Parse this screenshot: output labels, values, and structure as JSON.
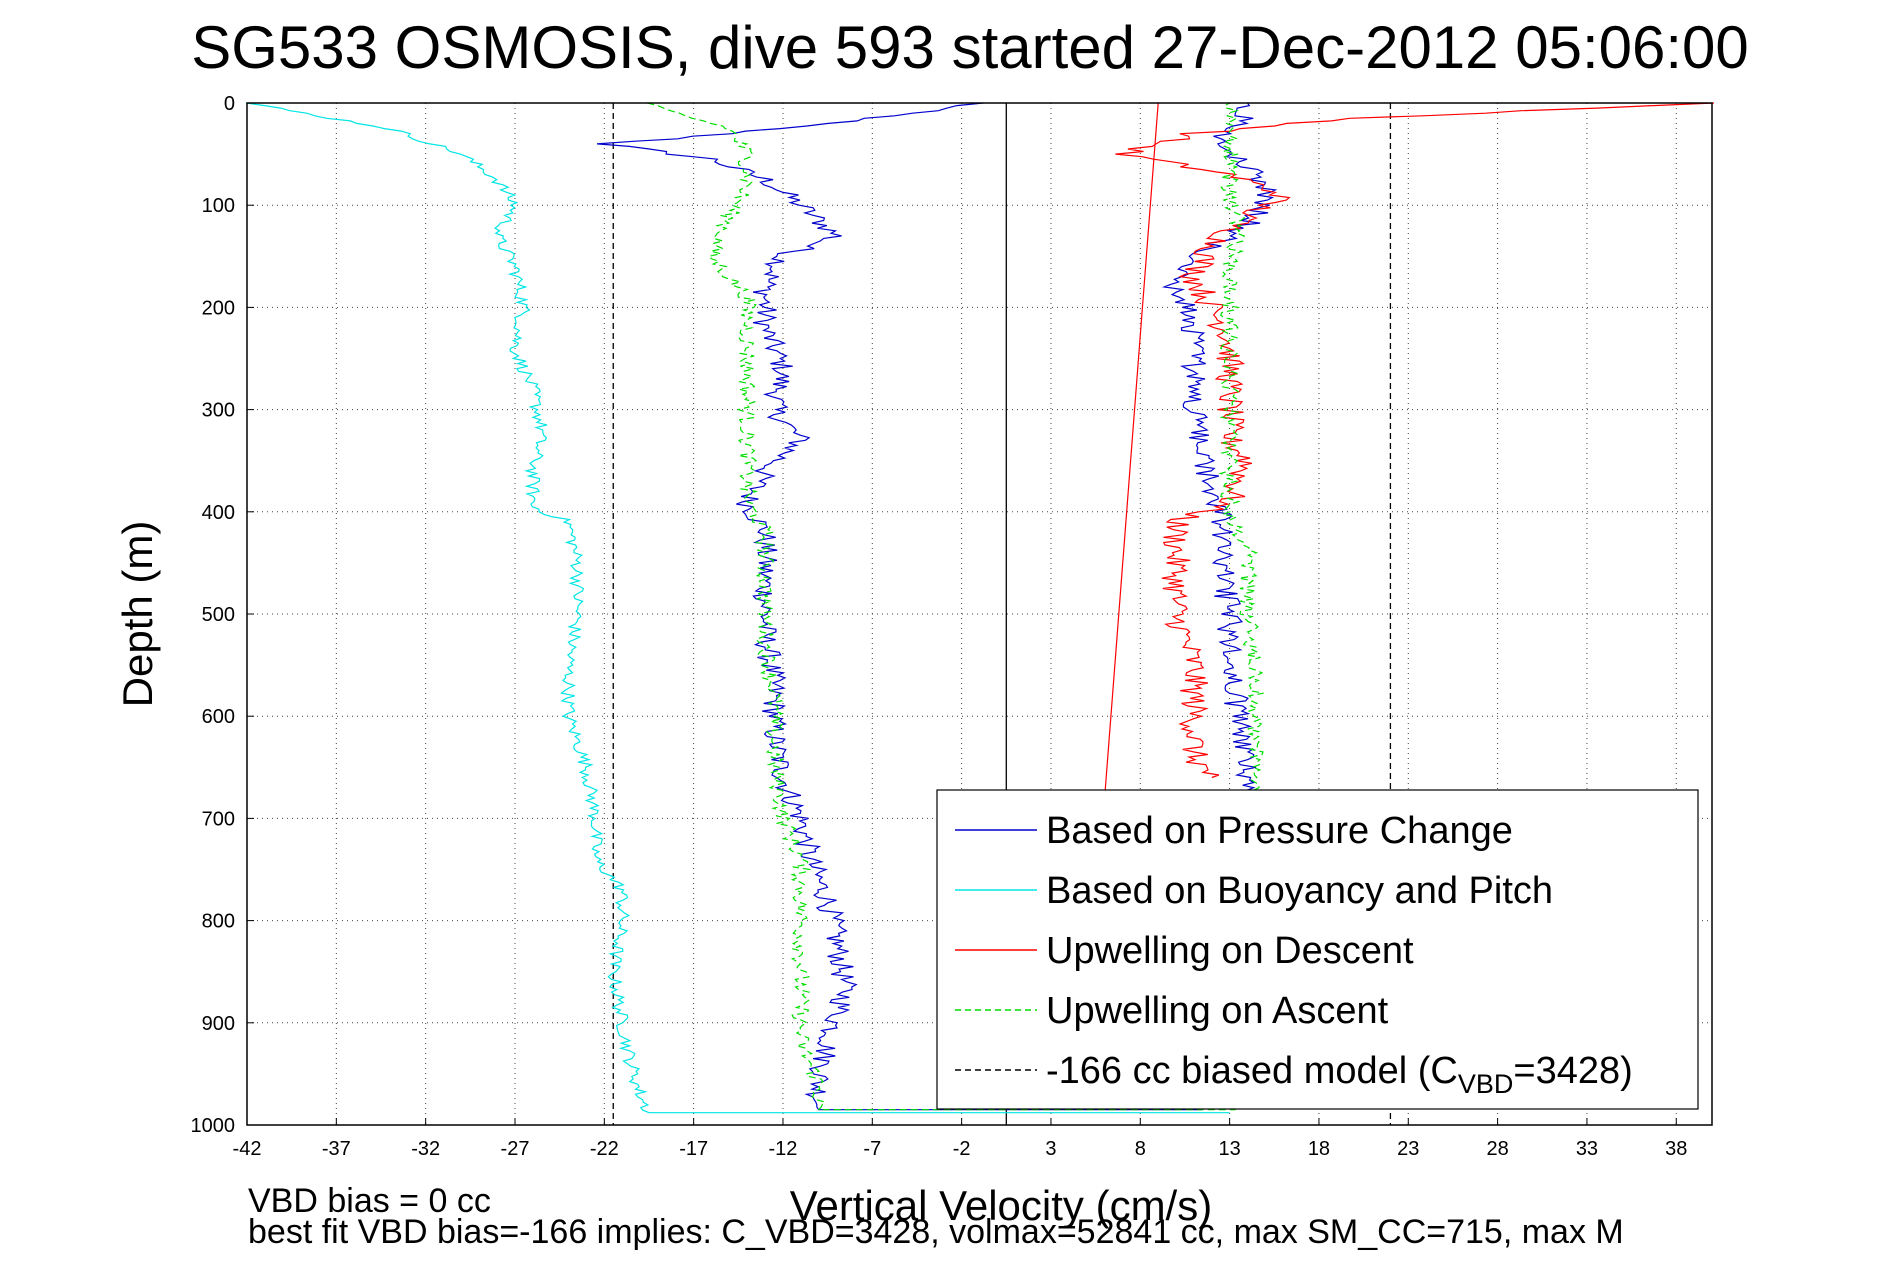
{
  "chart_data": {
    "type": "line",
    "title": "SG533 OSMOSIS, dive 593 started 27-Dec-2012 05:06:00",
    "xlabel": "Vertical Velocity (cm/s)",
    "ylabel": "Depth (m)",
    "xlim": [
      -42,
      40
    ],
    "ylim": [
      1000,
      0
    ],
    "y_reversed": true,
    "grid": true,
    "legend_position": "bottom-right",
    "x_ticks": [
      "-42",
      "-37",
      "-32",
      "-27",
      "-22",
      "-17",
      "-12",
      "-7",
      "-2",
      "3",
      "8",
      "13",
      "18",
      "23",
      "28",
      "33",
      "38"
    ],
    "y_ticks": [
      "0",
      "100",
      "200",
      "300",
      "400",
      "500",
      "600",
      "700",
      "800",
      "900",
      "1000"
    ],
    "legend": [
      {
        "label": "Based on Pressure Change",
        "color": "#0000cc",
        "dash": "solid"
      },
      {
        "label": "Based on Buoyancy and Pitch",
        "color": "#00e5e5",
        "dash": "solid"
      },
      {
        "label": "Upwelling on Descent",
        "color": "#ff0000",
        "dash": "solid"
      },
      {
        "label": "Upwelling on Ascent",
        "color": "#00dd00",
        "dash": "dashed"
      },
      {
        "label_prefix": "-166 cc biased model (C",
        "label_sub": "VBD",
        "label_suffix": "=3428)",
        "color": "#000000",
        "dash": "dashed"
      }
    ],
    "series": [
      {
        "name": "Based on Pressure Change",
        "color": "#0000cc",
        "points": [
          [
            -1,
            0
          ],
          [
            -7,
            15
          ],
          [
            -18,
            35
          ],
          [
            -22,
            40
          ],
          [
            -16,
            55
          ],
          [
            -13,
            75
          ],
          [
            -11,
            100
          ],
          [
            -9,
            130
          ],
          [
            -12,
            150
          ],
          [
            -13,
            180
          ],
          [
            -13,
            220
          ],
          [
            -12,
            260
          ],
          [
            -12.5,
            300
          ],
          [
            -11,
            330
          ],
          [
            -13,
            360
          ],
          [
            -14,
            390
          ],
          [
            -13,
            420
          ],
          [
            -13,
            470
          ],
          [
            -13,
            520
          ],
          [
            -12.5,
            570
          ],
          [
            -12.5,
            620
          ],
          [
            -12,
            660
          ],
          [
            -11,
            700
          ],
          [
            -10.5,
            740
          ],
          [
            -9.5,
            780
          ],
          [
            -9,
            820
          ],
          [
            -8.5,
            870
          ],
          [
            -9.5,
            920
          ],
          [
            -10,
            960
          ],
          [
            -10,
            985
          ],
          [
            12,
            985
          ],
          [
            12,
            960
          ],
          [
            13,
            920
          ],
          [
            14,
            880
          ],
          [
            14,
            800
          ],
          [
            14.5,
            700
          ],
          [
            14,
            650
          ],
          [
            13.5,
            600
          ],
          [
            13,
            550
          ],
          [
            13,
            500
          ],
          [
            12.5,
            450
          ],
          [
            12.5,
            400
          ],
          [
            11.5,
            350
          ],
          [
            11,
            300
          ],
          [
            11,
            250
          ],
          [
            11,
            210
          ],
          [
            10,
            180
          ],
          [
            11,
            150
          ],
          [
            14,
            120
          ],
          [
            15,
            100
          ],
          [
            15,
            80
          ],
          [
            14,
            60
          ],
          [
            12,
            40
          ],
          [
            14,
            20
          ],
          [
            14,
            0
          ]
        ],
        "noise": 0.7
      },
      {
        "name": "Based on Buoyancy and Pitch",
        "color": "#00e5e5",
        "points": [
          [
            -42,
            0
          ],
          [
            -34,
            25
          ],
          [
            -30,
            50
          ],
          [
            -28,
            75
          ],
          [
            -27,
            100
          ],
          [
            -28,
            130
          ],
          [
            -27,
            160
          ],
          [
            -26.5,
            200
          ],
          [
            -27,
            240
          ],
          [
            -26,
            280
          ],
          [
            -25.5,
            320
          ],
          [
            -26,
            360
          ],
          [
            -26,
            395
          ],
          [
            -24,
            410
          ],
          [
            -23.5,
            450
          ],
          [
            -23.5,
            500
          ],
          [
            -24,
            550
          ],
          [
            -24,
            600
          ],
          [
            -23,
            650
          ],
          [
            -22.5,
            700
          ],
          [
            -22.5,
            740
          ],
          [
            -21,
            770
          ],
          [
            -21,
            800
          ],
          [
            -21.5,
            850
          ],
          [
            -21,
            900
          ],
          [
            -20.5,
            940
          ],
          [
            -20,
            970
          ],
          [
            -19.5,
            988
          ],
          [
            13,
            988
          ]
        ],
        "noise": 0.4
      },
      {
        "name": "Upwelling on Descent",
        "color": "#ff0000",
        "points": [
          [
            40,
            0
          ],
          [
            20,
            15
          ],
          [
            11,
            30
          ],
          [
            7,
            50
          ],
          [
            13,
            70
          ],
          [
            16,
            90
          ],
          [
            14,
            110
          ],
          [
            12,
            140
          ],
          [
            11,
            170
          ],
          [
            12,
            200
          ],
          [
            13,
            230
          ],
          [
            13,
            260
          ],
          [
            13,
            300
          ],
          [
            13,
            330
          ],
          [
            14,
            350
          ],
          [
            13,
            390
          ],
          [
            10,
            410
          ],
          [
            10,
            450
          ],
          [
            10,
            500
          ],
          [
            11,
            550
          ],
          [
            11,
            600
          ],
          [
            11,
            640
          ],
          [
            12,
            660
          ]
        ],
        "noise": 0.8
      },
      {
        "name": "Upwelling on Ascent",
        "color": "#00dd00",
        "dash": "7,4",
        "points": [
          [
            -20,
            0
          ],
          [
            -15,
            25
          ],
          [
            -14,
            50
          ],
          [
            -14,
            80
          ],
          [
            -15,
            110
          ],
          [
            -16,
            150
          ],
          [
            -14,
            190
          ],
          [
            -14,
            230
          ],
          [
            -14,
            270
          ],
          [
            -14,
            300
          ],
          [
            -14,
            350
          ],
          [
            -14,
            390
          ],
          [
            -13,
            420
          ],
          [
            -13,
            480
          ],
          [
            -13,
            530
          ],
          [
            -12.5,
            580
          ],
          [
            -12.5,
            640
          ],
          [
            -12,
            700
          ],
          [
            -11,
            740
          ],
          [
            -11,
            800
          ],
          [
            -11,
            850
          ],
          [
            -11,
            880
          ],
          [
            -11,
            920
          ],
          [
            -10,
            960
          ],
          [
            -10,
            985
          ],
          [
            13,
            985
          ],
          [
            13,
            900
          ],
          [
            14,
            800
          ],
          [
            14,
            700
          ],
          [
            14.5,
            640
          ],
          [
            14.5,
            560
          ],
          [
            14,
            500
          ],
          [
            14,
            440
          ],
          [
            13,
            400
          ],
          [
            13,
            360
          ],
          [
            13,
            300
          ],
          [
            13,
            240
          ],
          [
            13,
            200
          ],
          [
            13,
            160
          ],
          [
            13.5,
            120
          ],
          [
            13,
            90
          ],
          [
            13,
            60
          ],
          [
            13,
            30
          ],
          [
            13,
            0
          ]
        ],
        "noise": 0.5
      },
      {
        "name": "Reference red line",
        "color": "#ff0000",
        "points": [
          [
            9,
            0
          ],
          [
            6,
            680
          ]
        ],
        "noise": 0
      }
    ],
    "reference_lines": [
      {
        "x": -21.5,
        "color": "#000000",
        "dash": "6,4"
      },
      {
        "x": 0.5,
        "color": "#000000",
        "dash": "none"
      },
      {
        "x": 22,
        "color": "#000000",
        "dash": "6,4"
      }
    ]
  },
  "footer": {
    "line1": "VBD bias = 0 cc",
    "line2": "best fit VBD bias=-166 implies: C_VBD=3428, volmax=52841 cc, max SM_CC=715, max M"
  }
}
